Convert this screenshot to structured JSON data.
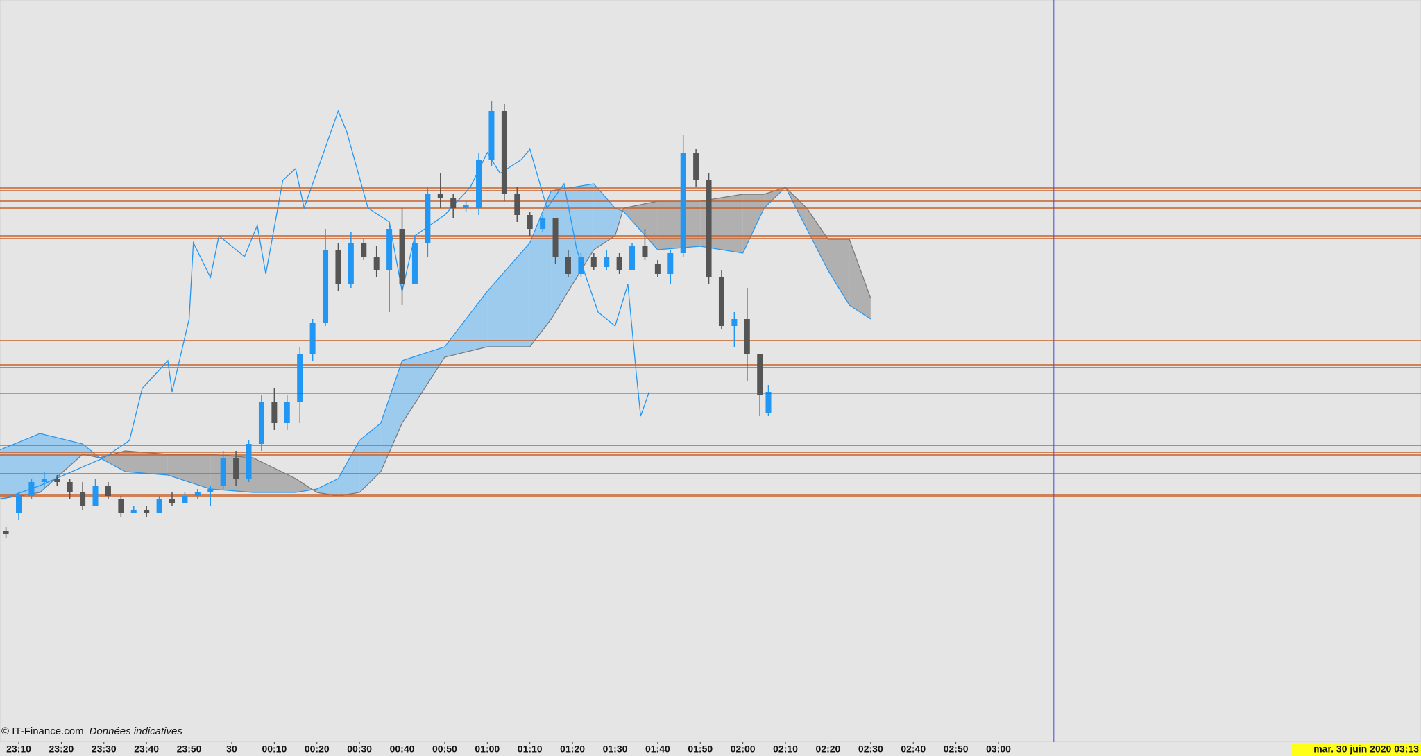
{
  "chart_data": {
    "type": "candlestick",
    "xlim": [
      5.6,
      339.2
    ],
    "ylim": [
      0,
      107
    ],
    "xticks": [
      {
        "value": 10,
        "label": "23:10"
      },
      {
        "value": 20,
        "label": "23:20"
      },
      {
        "value": 30,
        "label": "23:30"
      },
      {
        "value": 40,
        "label": "23:40"
      },
      {
        "value": 50,
        "label": "23:50"
      },
      {
        "value": 60,
        "label": "30"
      },
      {
        "value": 70,
        "label": "00:10"
      },
      {
        "value": 80,
        "label": "00:20"
      },
      {
        "value": 90,
        "label": "00:30"
      },
      {
        "value": 100,
        "label": "00:40"
      },
      {
        "value": 110,
        "label": "00:50"
      },
      {
        "value": 120,
        "label": "01:00"
      },
      {
        "value": 130,
        "label": "01:10"
      },
      {
        "value": 140,
        "label": "01:20"
      },
      {
        "value": 150,
        "label": "01:30"
      },
      {
        "value": 160,
        "label": "01:40"
      },
      {
        "value": 170,
        "label": "01:50"
      },
      {
        "value": 180,
        "label": "02:00"
      },
      {
        "value": 190,
        "label": "02:10"
      },
      {
        "value": 200,
        "label": "02:20"
      },
      {
        "value": 210,
        "label": "02:30"
      },
      {
        "value": 220,
        "label": "02:40"
      },
      {
        "value": 230,
        "label": "02:50"
      },
      {
        "value": 240,
        "label": "03:00"
      }
    ],
    "x": [
      7,
      10,
      13,
      16,
      19,
      22,
      25,
      28,
      31,
      34,
      37,
      40,
      43,
      46,
      49,
      52,
      55,
      58,
      61,
      64,
      67,
      70,
      73,
      76,
      79,
      82,
      85,
      88,
      91,
      94,
      97,
      100,
      103,
      106,
      109,
      112,
      115,
      118,
      121,
      124,
      127,
      130,
      133,
      136,
      139,
      142,
      145,
      148,
      151,
      154,
      157,
      160,
      163,
      166,
      169,
      172,
      175,
      178,
      181,
      184,
      186
    ],
    "open": [
      30.5,
      33,
      35.5,
      37.5,
      38,
      37.5,
      36,
      34,
      37,
      35,
      33,
      33.5,
      33,
      35,
      34.5,
      35.5,
      36,
      37,
      41,
      38,
      43,
      49,
      46,
      49,
      56,
      60.5,
      71,
      66,
      72,
      70,
      68,
      74,
      66,
      72,
      79,
      78.5,
      77,
      77,
      84,
      91,
      79,
      76,
      74,
      75.5,
      70,
      67.5,
      70,
      68.5,
      70,
      68,
      71.5,
      69,
      67.5,
      70.5,
      85,
      81,
      67,
      60,
      61,
      56,
      47.5
    ],
    "high": [
      31,
      36,
      38,
      39,
      38.5,
      38,
      37.5,
      38,
      37.5,
      35.5,
      34,
      34,
      35.5,
      36,
      36,
      36.5,
      37,
      42,
      42,
      43.5,
      50,
      51,
      50,
      57,
      61,
      74,
      72,
      73.5,
      72.5,
      71.5,
      75,
      77,
      73,
      80,
      82,
      79,
      78,
      85,
      92.5,
      92,
      80,
      76.5,
      76,
      75.5,
      71,
      70.5,
      70.5,
      71,
      70.5,
      72,
      74,
      69.5,
      71,
      87.5,
      85.5,
      82,
      68,
      62,
      65.5,
      56,
      51.5
    ],
    "low": [
      29.5,
      32,
      35,
      36.5,
      37,
      35,
      33.5,
      34,
      35,
      32.5,
      33,
      32.5,
      33,
      34,
      34.5,
      35,
      34,
      36.5,
      37,
      37.5,
      42,
      45,
      45,
      46,
      55,
      60,
      65,
      65.5,
      69.5,
      67,
      62,
      63,
      66,
      70,
      77,
      75.5,
      76.5,
      76,
      83,
      78,
      75,
      73,
      73.5,
      69,
      67,
      67,
      68,
      68,
      67.5,
      68,
      69.5,
      67,
      66,
      70,
      80,
      66,
      59.5,
      57,
      52,
      47,
      47
    ],
    "close": [
      30,
      35.5,
      37.5,
      38,
      37.5,
      36,
      34,
      37,
      35.5,
      33,
      33.5,
      33,
      35,
      34.5,
      35.5,
      36,
      36.5,
      41,
      38,
      43,
      49,
      46,
      49,
      56,
      60.5,
      71,
      66,
      72,
      70,
      68,
      74,
      66,
      72,
      79,
      78.5,
      77,
      77.5,
      84,
      91,
      79,
      76,
      74,
      75.5,
      70,
      67.5,
      70,
      68.5,
      70,
      68,
      71.5,
      70,
      67.5,
      70.5,
      85,
      81,
      67,
      60,
      61,
      56,
      50,
      50.5
    ],
    "up_color": "#2196f3",
    "down_color": "#555555",
    "levels": {
      "color": "#c8602a",
      "values": [
        79.9,
        79.5,
        78,
        77,
        73,
        72.6,
        57.9,
        54.4,
        54,
        42.8,
        41.8,
        41.4,
        38.7,
        35.7,
        35.5
      ]
    },
    "tenkan": {
      "color": "#2196f3",
      "x": [
        6,
        15,
        30,
        36,
        39,
        45,
        46,
        50,
        51,
        55,
        57,
        63,
        66,
        68,
        72,
        75,
        77,
        85,
        87,
        92,
        97,
        100,
        103,
        110,
        116,
        120,
        123,
        128,
        130,
        134,
        138,
        141,
        146,
        150,
        153,
        155,
        156,
        158
      ],
      "values": [
        35,
        37,
        41,
        43.5,
        51,
        55,
        50.5,
        61,
        72,
        67,
        73,
        70,
        74.5,
        67.5,
        81,
        82.7,
        77,
        91,
        88,
        77,
        75,
        65,
        73,
        76,
        80,
        85,
        82,
        84,
        85.5,
        77,
        80.5,
        71,
        62,
        60,
        66,
        53,
        47,
        50.5
      ]
    },
    "cloud": {
      "bull_color": "#9ccbee",
      "bear_color": "#b0b0b0",
      "line_a": "#2196f3",
      "line_b": "#777777",
      "x": [
        5,
        15,
        25,
        29,
        35,
        45,
        55,
        65,
        75,
        80,
        85,
        90,
        95,
        100,
        110,
        120,
        130,
        135,
        145,
        150,
        152,
        160,
        170,
        180,
        185,
        190,
        195,
        200,
        205,
        210
      ],
      "span_a": [
        42,
        44.5,
        43,
        41,
        39,
        38.5,
        36.5,
        36,
        36,
        36.5,
        38,
        43.5,
        46,
        55,
        57,
        65,
        72,
        79.5,
        80.5,
        77,
        76.5,
        71,
        71.5,
        70.5,
        77,
        80,
        74,
        68,
        63,
        61
      ],
      "span_b": [
        35,
        36,
        41.5,
        41,
        42,
        41.5,
        41.5,
        41,
        38,
        36,
        35.5,
        36,
        39,
        46,
        55.5,
        57,
        57,
        61,
        71,
        73,
        77,
        78,
        78,
        79,
        79,
        80,
        77,
        72.5,
        72.5,
        64
      ]
    },
    "cursor": {
      "x": 253,
      "y": 50.3,
      "color": "#4a4ad8",
      "label": "mar. 30 juin 2020 03:13"
    },
    "copyright": "© IT-Finance.com",
    "note": "Données indicatives"
  }
}
